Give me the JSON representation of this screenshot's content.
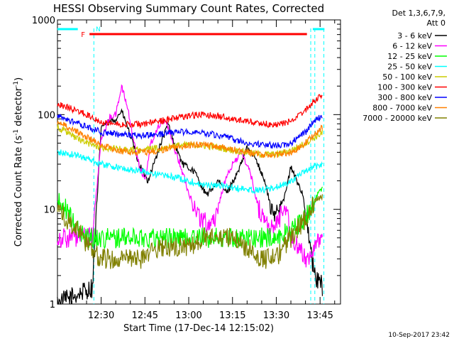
{
  "chart_data": {
    "type": "line",
    "title": "HESSI Observing Summary Count Rates, Corrected",
    "xlabel": "Start Time (17-Dec-14 12:15:02)",
    "ylabel_main": "Corrected Count Rate (s",
    "ylabel_sup1": "-1",
    "ylabel_mid": " detector",
    "ylabel_sup2": "-1",
    "ylabel_end": ")",
    "footer": "10-Sep-2017 23:42",
    "y_scale": "log",
    "xlim": [
      "12:15:02",
      "13:52:00"
    ],
    "ylim": [
      1,
      1000
    ],
    "x_ticks": [
      "12:30",
      "12:45",
      "13:00",
      "13:15",
      "13:30",
      "13:45"
    ],
    "x_tick_minutes": [
      30,
      45,
      60,
      75,
      90,
      105
    ],
    "y_ticks": [
      "1",
      "10",
      "100",
      "1000"
    ],
    "y_tick_values": [
      1,
      10,
      100,
      1000
    ],
    "legend": {
      "placement": "right, outside plot",
      "header1": "Det 1,3,6,7,9,",
      "header2": "Att 0"
    },
    "series": [
      {
        "name": "3 - 6 keV",
        "color": "#000000",
        "values": [
          [
            15,
            1
          ],
          [
            27,
            1.5
          ],
          [
            30,
            75
          ],
          [
            35,
            90
          ],
          [
            37,
            110
          ],
          [
            40,
            60
          ],
          [
            43,
            30
          ],
          [
            46,
            20
          ],
          [
            48,
            30
          ],
          [
            51,
            55
          ],
          [
            53,
            80
          ],
          [
            55,
            50
          ],
          [
            58,
            30
          ],
          [
            62,
            25
          ],
          [
            66,
            14
          ],
          [
            70,
            20
          ],
          [
            73,
            15
          ],
          [
            77,
            25
          ],
          [
            80,
            45
          ],
          [
            83,
            35
          ],
          [
            86,
            20
          ],
          [
            89,
            8
          ],
          [
            91,
            11
          ],
          [
            93,
            14
          ],
          [
            95,
            28
          ],
          [
            97,
            20
          ],
          [
            99,
            15
          ],
          [
            103,
            2
          ],
          [
            106,
            1.5
          ]
        ]
      },
      {
        "name": "6 - 12 keV",
        "color": "#ff00ff",
        "values": [
          [
            15,
            5
          ],
          [
            27,
            5
          ],
          [
            30,
            55
          ],
          [
            33,
            95
          ],
          [
            35,
            100
          ],
          [
            37,
            200
          ],
          [
            39,
            120
          ],
          [
            41,
            55
          ],
          [
            43,
            30
          ],
          [
            45,
            20
          ],
          [
            47,
            50
          ],
          [
            50,
            80
          ],
          [
            52,
            90
          ],
          [
            54,
            55
          ],
          [
            57,
            30
          ],
          [
            60,
            15
          ],
          [
            63,
            9
          ],
          [
            66,
            7
          ],
          [
            69,
            8
          ],
          [
            72,
            18
          ],
          [
            75,
            30
          ],
          [
            78,
            40
          ],
          [
            81,
            25
          ],
          [
            84,
            10
          ],
          [
            87,
            7
          ],
          [
            89,
            6
          ],
          [
            91,
            8
          ],
          [
            93,
            12
          ],
          [
            95,
            5
          ],
          [
            100,
            3
          ],
          [
            106,
            5
          ]
        ]
      },
      {
        "name": "12 - 25 keV",
        "color": "#00ff00",
        "values": [
          [
            15,
            12
          ],
          [
            18,
            10
          ],
          [
            22,
            6
          ],
          [
            26,
            5
          ],
          [
            30,
            5
          ],
          [
            40,
            5
          ],
          [
            50,
            5
          ],
          [
            60,
            5
          ],
          [
            70,
            5
          ],
          [
            80,
            5
          ],
          [
            85,
            5
          ],
          [
            90,
            5
          ],
          [
            95,
            6
          ],
          [
            100,
            8
          ],
          [
            103,
            12
          ],
          [
            106,
            18
          ]
        ]
      },
      {
        "name": "25 - 50 keV",
        "color": "#00ffff",
        "values": [
          [
            15,
            40
          ],
          [
            20,
            38
          ],
          [
            25,
            35
          ],
          [
            30,
            30
          ],
          [
            35,
            28
          ],
          [
            40,
            26
          ],
          [
            45,
            25
          ],
          [
            50,
            23
          ],
          [
            55,
            22
          ],
          [
            60,
            20
          ],
          [
            65,
            18
          ],
          [
            70,
            18
          ],
          [
            75,
            17
          ],
          [
            80,
            16
          ],
          [
            85,
            16
          ],
          [
            90,
            17
          ],
          [
            95,
            20
          ],
          [
            100,
            25
          ],
          [
            103,
            28
          ],
          [
            106,
            30
          ]
        ]
      },
      {
        "name": "50 - 100 keV",
        "color": "#cccc00",
        "values": [
          [
            15,
            75
          ],
          [
            20,
            60
          ],
          [
            25,
            50
          ],
          [
            30,
            45
          ],
          [
            40,
            42
          ],
          [
            50,
            44
          ],
          [
            55,
            47
          ],
          [
            60,
            48
          ],
          [
            65,
            47
          ],
          [
            70,
            45
          ],
          [
            75,
            42
          ],
          [
            80,
            40
          ],
          [
            85,
            38
          ],
          [
            90,
            38
          ],
          [
            95,
            42
          ],
          [
            100,
            50
          ],
          [
            106,
            65
          ]
        ]
      },
      {
        "name": "100 - 300 keV",
        "color": "#ff0000",
        "values": [
          [
            15,
            130
          ],
          [
            20,
            115
          ],
          [
            25,
            100
          ],
          [
            30,
            85
          ],
          [
            35,
            80
          ],
          [
            40,
            78
          ],
          [
            45,
            80
          ],
          [
            50,
            85
          ],
          [
            55,
            92
          ],
          [
            60,
            98
          ],
          [
            65,
            100
          ],
          [
            70,
            97
          ],
          [
            75,
            90
          ],
          [
            80,
            85
          ],
          [
            85,
            80
          ],
          [
            90,
            78
          ],
          [
            95,
            85
          ],
          [
            100,
            110
          ],
          [
            103,
            140
          ],
          [
            106,
            165
          ]
        ]
      },
      {
        "name": "300 - 800 keV",
        "color": "#0000ff",
        "values": [
          [
            15,
            95
          ],
          [
            20,
            85
          ],
          [
            25,
            75
          ],
          [
            30,
            65
          ],
          [
            35,
            62
          ],
          [
            40,
            60
          ],
          [
            45,
            60
          ],
          [
            50,
            62
          ],
          [
            55,
            65
          ],
          [
            60,
            66
          ],
          [
            65,
            65
          ],
          [
            70,
            60
          ],
          [
            75,
            55
          ],
          [
            80,
            50
          ],
          [
            85,
            48
          ],
          [
            90,
            47
          ],
          [
            95,
            50
          ],
          [
            100,
            65
          ],
          [
            103,
            85
          ],
          [
            106,
            100
          ]
        ]
      },
      {
        "name": "800 - 7000 keV",
        "color": "#ff8000",
        "values": [
          [
            15,
            85
          ],
          [
            20,
            70
          ],
          [
            25,
            58
          ],
          [
            30,
            48
          ],
          [
            35,
            42
          ],
          [
            40,
            40
          ],
          [
            45,
            40
          ],
          [
            50,
            42
          ],
          [
            55,
            45
          ],
          [
            60,
            48
          ],
          [
            65,
            48
          ],
          [
            70,
            46
          ],
          [
            75,
            43
          ],
          [
            80,
            40
          ],
          [
            85,
            38
          ],
          [
            90,
            37
          ],
          [
            95,
            40
          ],
          [
            100,
            50
          ],
          [
            103,
            62
          ],
          [
            106,
            75
          ]
        ]
      },
      {
        "name": "7000 - 20000 keV",
        "color": "#808000",
        "values": [
          [
            15,
            10
          ],
          [
            18,
            8
          ],
          [
            22,
            6
          ],
          [
            26,
            4
          ],
          [
            30,
            3
          ],
          [
            35,
            3
          ],
          [
            40,
            3
          ],
          [
            45,
            3
          ],
          [
            50,
            4
          ],
          [
            55,
            4
          ],
          [
            60,
            4
          ],
          [
            65,
            5
          ],
          [
            70,
            5
          ],
          [
            75,
            5
          ],
          [
            80,
            4
          ],
          [
            85,
            3
          ],
          [
            90,
            3
          ],
          [
            95,
            5
          ],
          [
            100,
            8
          ],
          [
            103,
            12
          ],
          [
            106,
            14
          ]
        ]
      }
    ],
    "markers": {
      "flag_F": "F",
      "flag_N": "N",
      "flag_F_color": "#ff0000",
      "flag_N_color": "#00ffff",
      "flare_bar": [
        26.0,
        100.5
      ],
      "night_bars": [
        [
          15,
          22
        ],
        [
          102.5,
          106.5
        ]
      ],
      "transition_lines": [
        27.5,
        101.8,
        103.2,
        106.3
      ]
    }
  }
}
